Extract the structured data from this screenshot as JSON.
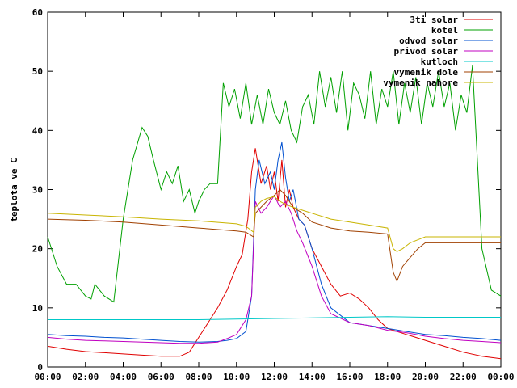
{
  "chart_data": {
    "type": "line",
    "title": "",
    "xlabel": "",
    "ylabel": "teplota ve C",
    "xlim": [
      0,
      24
    ],
    "ylim": [
      0,
      60
    ],
    "x_ticks": [
      "00:00",
      "02:00",
      "04:00",
      "06:00",
      "08:00",
      "10:00",
      "12:00",
      "14:00",
      "16:00",
      "18:00",
      "20:00",
      "22:00",
      "00:00"
    ],
    "y_ticks": [
      "0",
      "10",
      "20",
      "30",
      "40",
      "50",
      "60"
    ],
    "grid": false,
    "legend_position": "top-right",
    "series": [
      {
        "name": "3ti solar",
        "color": "#e00000",
        "x": [
          0,
          1,
          2,
          3,
          4,
          5,
          6,
          7,
          7.5,
          8,
          8.5,
          9,
          9.5,
          10,
          10.3,
          10.6,
          10.8,
          11,
          11.3,
          11.6,
          11.8,
          12,
          12.2,
          12.4,
          12.6,
          12.8,
          13,
          13.3,
          13.6,
          14,
          14.5,
          15,
          15.5,
          16,
          16.5,
          17,
          17.5,
          18,
          19,
          20,
          21,
          22,
          23,
          24
        ],
        "y": [
          3.5,
          3,
          2.6,
          2.4,
          2.2,
          2,
          1.8,
          1.8,
          2.5,
          5,
          7.5,
          10,
          13,
          17,
          19,
          25,
          33,
          37,
          31,
          34,
          30,
          33,
          28,
          35,
          27,
          30,
          27,
          25,
          24,
          20,
          17,
          14,
          12,
          12.5,
          11.5,
          10,
          8,
          6.5,
          5.5,
          4.5,
          3.5,
          2.5,
          1.8,
          1.4
        ]
      },
      {
        "name": "kotel",
        "color": "#00a000",
        "x": [
          0,
          0.5,
          1,
          1.5,
          2,
          2.3,
          2.5,
          3,
          3.5,
          4,
          4.5,
          5,
          5.3,
          5.6,
          6,
          6.3,
          6.6,
          6.9,
          7.2,
          7.5,
          7.8,
          8,
          8.3,
          8.6,
          9,
          9.3,
          9.6,
          9.9,
          10.2,
          10.5,
          10.8,
          11.1,
          11.4,
          11.7,
          12,
          12.3,
          12.6,
          12.9,
          13.2,
          13.5,
          13.8,
          14.1,
          14.4,
          14.7,
          15,
          15.3,
          15.6,
          15.9,
          16.2,
          16.5,
          16.8,
          17.1,
          17.4,
          17.7,
          18,
          18.3,
          18.6,
          18.9,
          19.2,
          19.5,
          19.8,
          20.1,
          20.4,
          20.7,
          21,
          21.3,
          21.6,
          21.9,
          22.2,
          22.5,
          23,
          23.5,
          24
        ],
        "y": [
          22,
          17,
          14,
          14,
          12,
          11.5,
          14,
          12,
          11,
          25,
          35,
          40.5,
          39,
          35,
          30,
          33,
          31,
          34,
          28,
          30,
          26,
          28,
          30,
          31,
          31,
          48,
          44,
          47,
          42,
          48,
          41,
          46,
          41,
          47,
          43,
          41,
          45,
          40,
          38,
          44,
          46,
          41,
          50,
          44,
          49,
          43,
          50,
          40,
          48,
          46,
          42,
          50,
          41,
          47,
          44,
          50,
          41,
          48,
          43,
          49,
          41,
          48,
          44,
          50,
          44,
          48,
          40,
          46,
          43,
          51,
          20,
          13,
          12
        ]
      },
      {
        "name": "odvod solar",
        "color": "#0050d0",
        "x": [
          0,
          1,
          2,
          3,
          4,
          5,
          6,
          7,
          8,
          9,
          9.5,
          10,
          10.5,
          10.8,
          11,
          11.2,
          11.5,
          11.8,
          12,
          12.2,
          12.4,
          12.6,
          12.8,
          13,
          13.3,
          13.6,
          14,
          14.5,
          15,
          16,
          17,
          18,
          19,
          20,
          21,
          22,
          23,
          24
        ],
        "y": [
          5.5,
          5.3,
          5.2,
          5,
          4.9,
          4.7,
          4.5,
          4.3,
          4.2,
          4.3,
          4.5,
          4.8,
          6,
          12,
          30,
          35,
          31,
          33,
          30,
          35,
          38,
          32,
          28,
          30,
          25,
          24,
          20,
          14,
          10,
          7.5,
          7,
          6.5,
          6,
          5.5,
          5.3,
          5,
          4.8,
          4.5
        ]
      },
      {
        "name": "privod solar",
        "color": "#c000c0",
        "x": [
          0,
          1,
          2,
          3,
          4,
          5,
          6,
          7,
          8,
          9,
          9.5,
          10,
          10.5,
          10.8,
          11,
          11.3,
          11.6,
          12,
          12.3,
          12.6,
          12.9,
          13.2,
          13.5,
          14,
          14.5,
          15,
          16,
          17,
          18,
          19,
          20,
          21,
          22,
          23,
          24
        ],
        "y": [
          5,
          4.7,
          4.5,
          4.4,
          4.3,
          4.2,
          4.1,
          4,
          4,
          4.2,
          4.8,
          5.5,
          8,
          12,
          28,
          26,
          27,
          29,
          27,
          28,
          26,
          23,
          21,
          17,
          12,
          9,
          7.5,
          7,
          6.2,
          5.8,
          5.2,
          4.8,
          4.5,
          4.3,
          4.1
        ]
      },
      {
        "name": "kutloch",
        "color": "#00c8c8",
        "x": [
          0,
          2,
          4,
          6,
          8,
          10,
          12,
          14,
          16,
          18,
          20,
          22,
          24
        ],
        "y": [
          8,
          8,
          8,
          8,
          8,
          8.1,
          8.2,
          8.3,
          8.4,
          8.5,
          8.4,
          8.4,
          8.4
        ]
      },
      {
        "name": "vymenik dole",
        "color": "#a04000",
        "x": [
          0,
          2,
          4,
          6,
          8,
          10,
          10.5,
          10.9,
          11,
          11.3,
          11.6,
          12,
          12.3,
          12.6,
          13,
          13.5,
          14,
          15,
          16,
          17,
          18,
          18.3,
          18.5,
          18.8,
          19.2,
          19.6,
          20,
          21,
          22,
          23,
          24
        ],
        "y": [
          25,
          24.8,
          24.5,
          24,
          23.5,
          23,
          22.8,
          22,
          26,
          27,
          28,
          29,
          30,
          29,
          27,
          26,
          24.5,
          23.5,
          23,
          22.8,
          22.5,
          16,
          14.5,
          17,
          18.5,
          20,
          21,
          21,
          21,
          21,
          21
        ]
      },
      {
        "name": "vymenik nahore",
        "color": "#c8b400",
        "x": [
          0,
          2,
          4,
          6,
          8,
          10,
          10.5,
          10.9,
          11,
          11.3,
          11.6,
          12,
          12.3,
          12.6,
          13,
          13.5,
          14,
          15,
          16,
          17,
          18,
          18.3,
          18.5,
          18.8,
          19.2,
          19.6,
          20,
          21,
          22,
          23,
          24
        ],
        "y": [
          26,
          25.7,
          25.4,
          25,
          24.7,
          24.2,
          23.8,
          22.8,
          27,
          28,
          28.5,
          28.8,
          28,
          27.5,
          27,
          26.5,
          26,
          25,
          24.5,
          24,
          23.5,
          20,
          19.5,
          20,
          21,
          21.5,
          22,
          22,
          22,
          22,
          22
        ]
      }
    ]
  }
}
